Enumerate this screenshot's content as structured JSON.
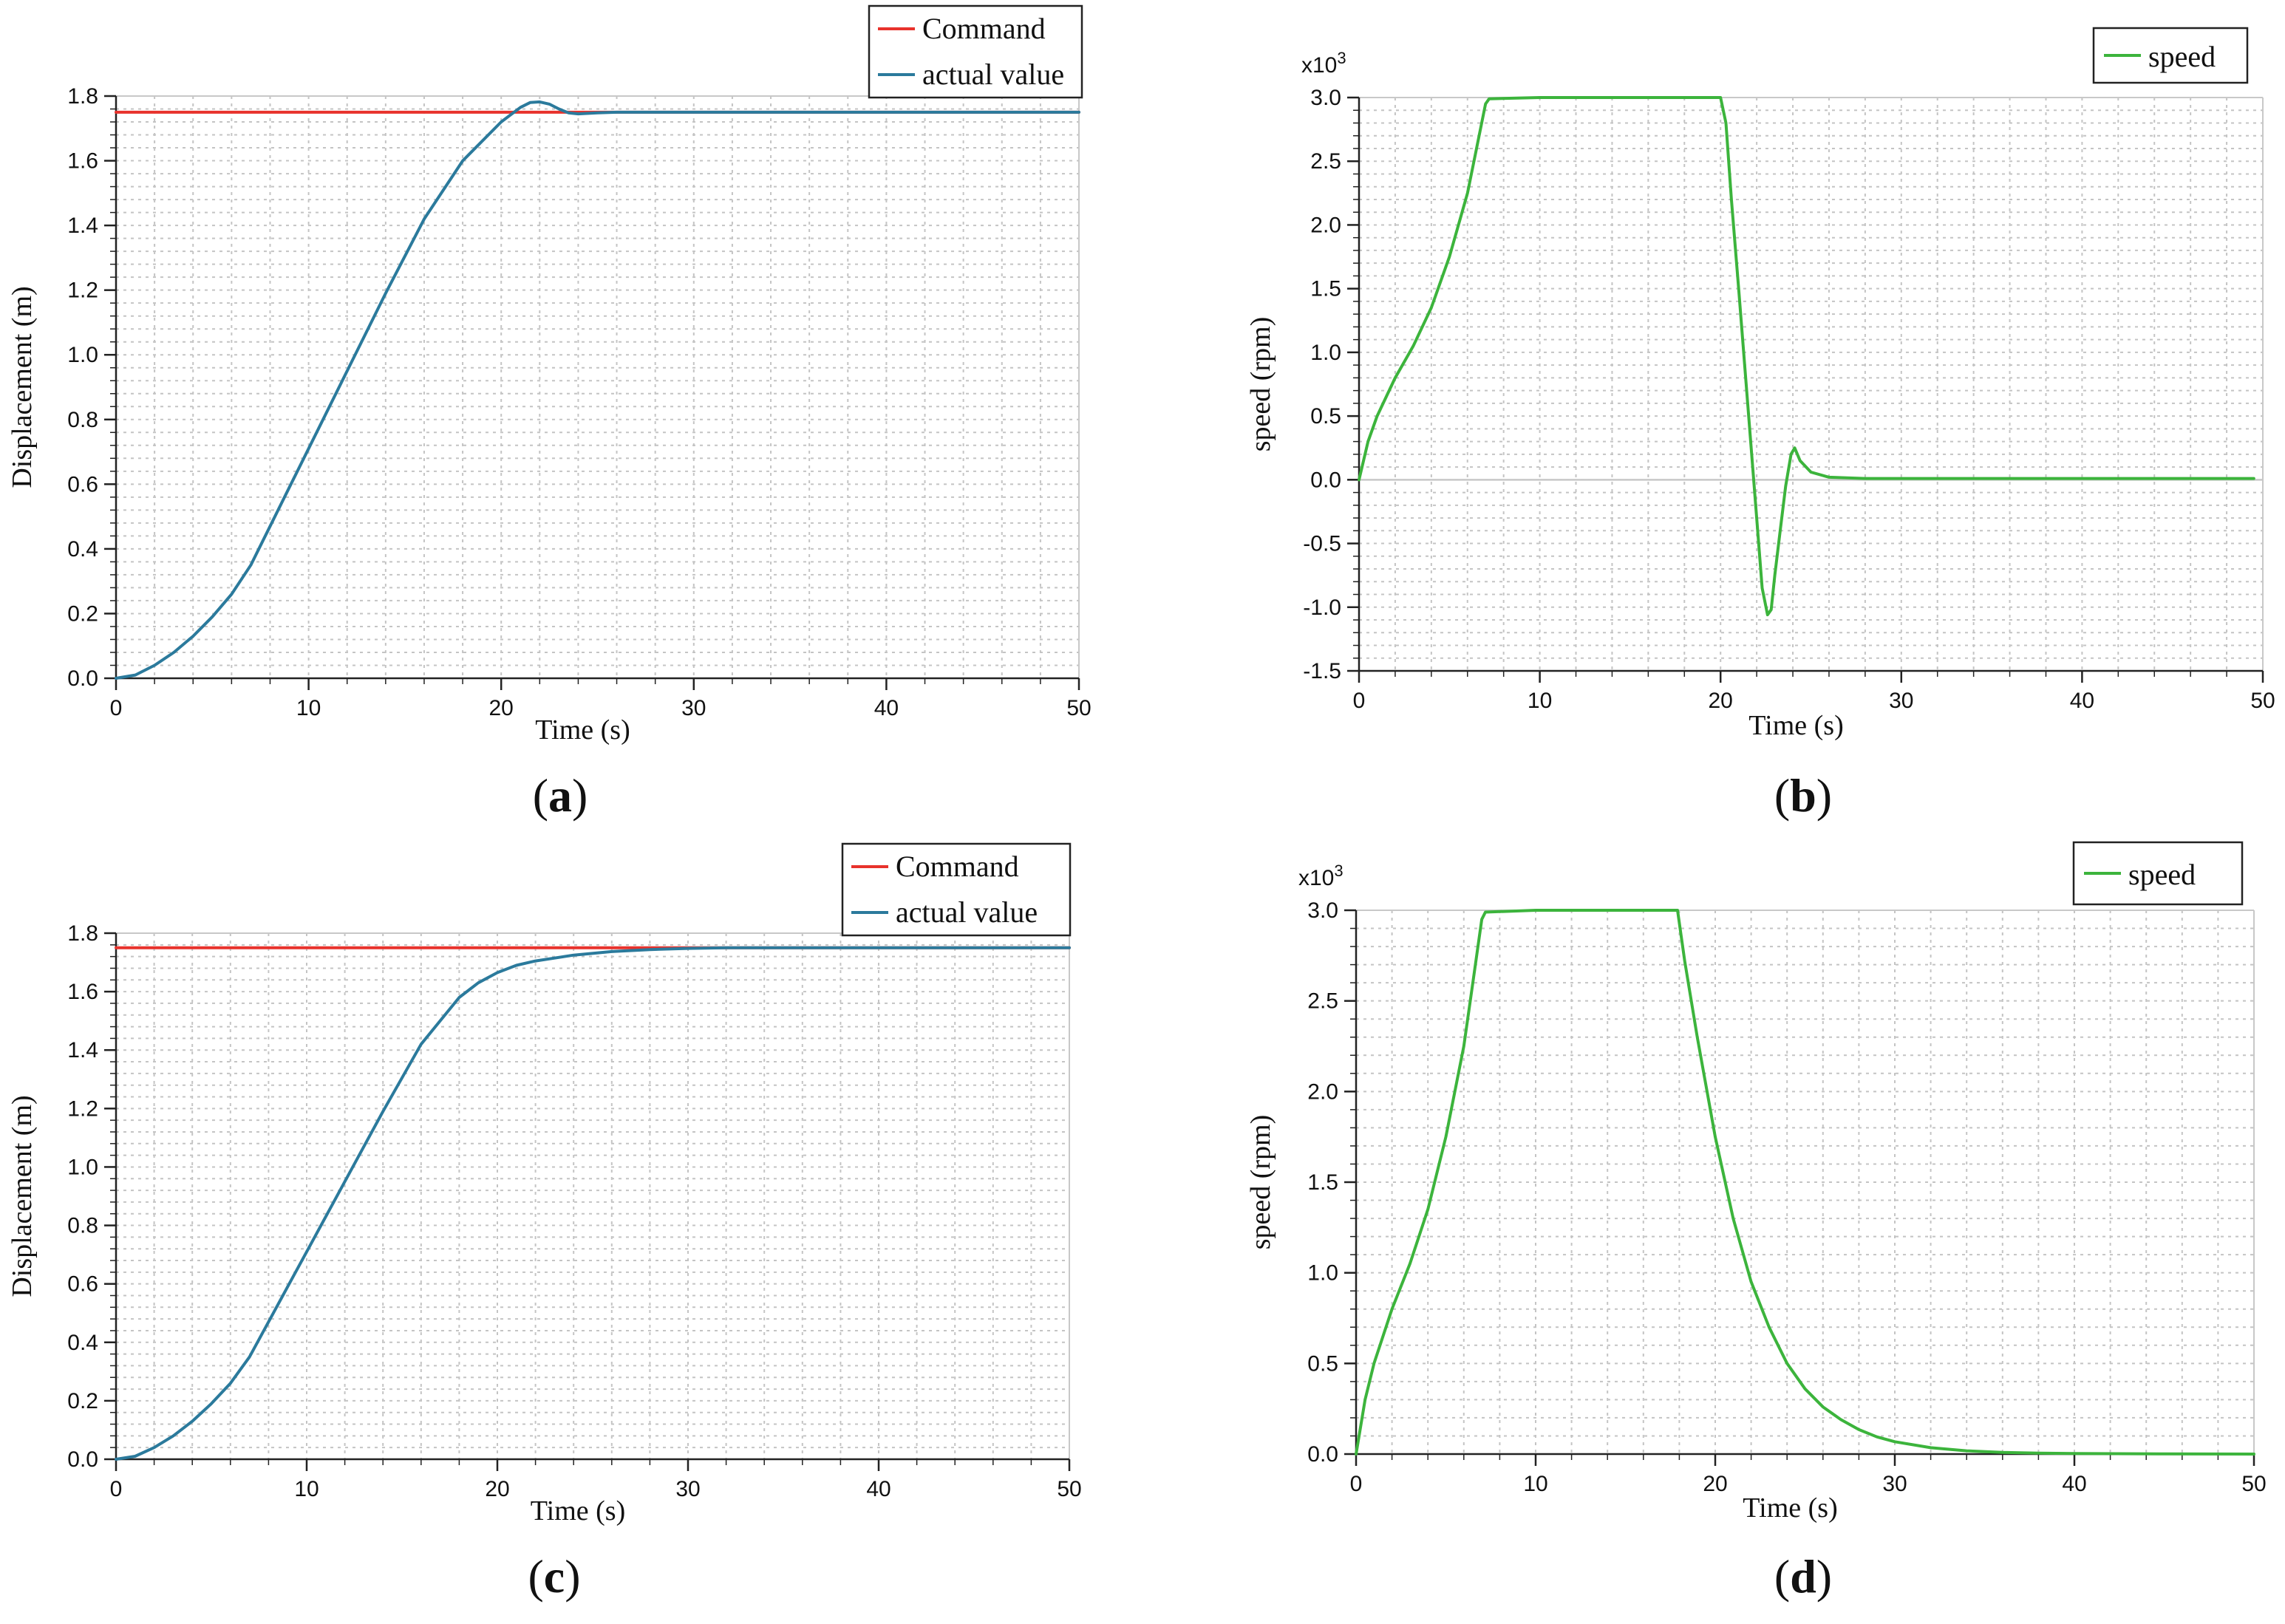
{
  "chart_data": [
    {
      "id": "a",
      "type": "line",
      "caption": "a",
      "xlabel": "Time (s)",
      "ylabel": "Displacement (m)",
      "xlim": [
        0,
        50
      ],
      "ylim": [
        0,
        1.8
      ],
      "xticks": [
        0,
        10,
        20,
        30,
        40,
        50
      ],
      "yticks": [
        0.0,
        0.2,
        0.4,
        0.6,
        0.8,
        1.0,
        1.2,
        1.4,
        1.6,
        1.8
      ],
      "ytick_labels": [
        "0.0",
        "0.2",
        "0.4",
        "0.6",
        "0.8",
        "1.0",
        "1.2",
        "1.4",
        "1.6",
        "1.8"
      ],
      "grid": true,
      "legend_position": "top-right",
      "series": [
        {
          "name": "Command",
          "color": "#e8322c",
          "x": [
            0,
            50
          ],
          "y": [
            1.75,
            1.75
          ]
        },
        {
          "name": "actual value",
          "color": "#2b7a9c",
          "x": [
            0,
            1,
            2,
            3,
            4,
            5,
            6,
            7,
            8,
            9,
            10,
            12,
            14,
            16,
            18,
            20,
            21,
            21.5,
            22,
            22.5,
            23,
            23.5,
            24,
            25,
            26,
            30,
            40,
            50
          ],
          "y": [
            0,
            0.01,
            0.04,
            0.08,
            0.13,
            0.19,
            0.26,
            0.35,
            0.47,
            0.59,
            0.71,
            0.95,
            1.19,
            1.42,
            1.6,
            1.72,
            1.765,
            1.78,
            1.782,
            1.775,
            1.76,
            1.748,
            1.745,
            1.748,
            1.75,
            1.75,
            1.75,
            1.75
          ]
        }
      ]
    },
    {
      "id": "b",
      "type": "line",
      "caption": "b",
      "xlabel": "Time (s)",
      "ylabel": "speed (rpm)",
      "scale_label": "x10",
      "scale_exponent": "3",
      "xlim": [
        0,
        50
      ],
      "ylim": [
        -1.5,
        3.0
      ],
      "xticks": [
        0,
        10,
        20,
        30,
        40,
        50
      ],
      "yticks": [
        -1.5,
        -1.0,
        -0.5,
        0.0,
        0.5,
        1.0,
        1.5,
        2.0,
        2.5,
        3.0
      ],
      "ytick_labels": [
        "-1.5",
        "-1.0",
        "-0.5",
        "0.0",
        "0.5",
        "1.0",
        "1.5",
        "2.0",
        "2.5",
        "3.0"
      ],
      "grid": true,
      "legend_position": "top-right",
      "series": [
        {
          "name": "speed",
          "color": "#3cb43c",
          "x": [
            0,
            0.5,
            1,
            2,
            3,
            4,
            5,
            6,
            6.5,
            7,
            7.2,
            10,
            15,
            19.5,
            20,
            20.3,
            20.6,
            21,
            21.5,
            22,
            22.3,
            22.6,
            22.8,
            23,
            23.3,
            23.6,
            23.9,
            24.1,
            24.4,
            25,
            26,
            28,
            30,
            40,
            49.5
          ],
          "y": [
            0,
            0.3,
            0.5,
            0.8,
            1.05,
            1.35,
            1.75,
            2.25,
            2.6,
            2.95,
            2.99,
            3.0,
            3.0,
            3.0,
            3.0,
            2.8,
            2.2,
            1.5,
            0.6,
            -0.3,
            -0.85,
            -1.06,
            -1.02,
            -0.75,
            -0.4,
            -0.05,
            0.2,
            0.25,
            0.15,
            0.06,
            0.02,
            0.01,
            0.01,
            0.01,
            0.01
          ]
        }
      ]
    },
    {
      "id": "c",
      "type": "line",
      "caption": "c",
      "xlabel": "Time (s)",
      "ylabel": "Displacement (m)",
      "xlim": [
        0,
        50
      ],
      "ylim": [
        0,
        1.8
      ],
      "xticks": [
        0,
        10,
        20,
        30,
        40,
        50
      ],
      "yticks": [
        0.0,
        0.2,
        0.4,
        0.6,
        0.8,
        1.0,
        1.2,
        1.4,
        1.6,
        1.8
      ],
      "ytick_labels": [
        "0.0",
        "0.2",
        "0.4",
        "0.6",
        "0.8",
        "1.0",
        "1.2",
        "1.4",
        "1.6",
        "1.8"
      ],
      "grid": true,
      "legend_position": "top-right",
      "series": [
        {
          "name": "Command",
          "color": "#e8322c",
          "x": [
            0,
            50
          ],
          "y": [
            1.75,
            1.75
          ]
        },
        {
          "name": "actual value",
          "color": "#2b7a9c",
          "x": [
            0,
            1,
            2,
            3,
            4,
            5,
            6,
            7,
            8,
            9,
            10,
            12,
            14,
            16,
            18,
            19,
            20,
            21,
            22,
            24,
            26,
            28,
            30,
            32,
            35,
            40,
            50
          ],
          "y": [
            0,
            0.01,
            0.04,
            0.08,
            0.13,
            0.19,
            0.26,
            0.35,
            0.47,
            0.59,
            0.71,
            0.95,
            1.19,
            1.42,
            1.58,
            1.63,
            1.665,
            1.69,
            1.705,
            1.725,
            1.737,
            1.744,
            1.748,
            1.75,
            1.75,
            1.75,
            1.75
          ]
        }
      ]
    },
    {
      "id": "d",
      "type": "line",
      "caption": "d",
      "xlabel": "Time (s)",
      "ylabel": "speed (rpm)",
      "scale_label": "x10",
      "scale_exponent": "3",
      "xlim": [
        0,
        50
      ],
      "ylim": [
        0,
        3.0
      ],
      "xticks": [
        0,
        10,
        20,
        30,
        40,
        50
      ],
      "yticks": [
        0.0,
        0.5,
        1.0,
        1.5,
        2.0,
        2.5,
        3.0
      ],
      "ytick_labels": [
        "0.0",
        "0.5",
        "1.0",
        "1.5",
        "2.0",
        "2.5",
        "3.0"
      ],
      "grid": true,
      "legend_position": "top-right",
      "series": [
        {
          "name": "speed",
          "color": "#3cb43c",
          "x": [
            0,
            0.5,
            1,
            2,
            3,
            4,
            5,
            6,
            6.5,
            7,
            7.2,
            10,
            15,
            17.9,
            18.3,
            19,
            20,
            21,
            22,
            23,
            24,
            25,
            26,
            27,
            28,
            29,
            30,
            32,
            34,
            36,
            38,
            40,
            45,
            50
          ],
          "y": [
            0,
            0.3,
            0.5,
            0.8,
            1.05,
            1.35,
            1.75,
            2.25,
            2.6,
            2.95,
            2.99,
            3.0,
            3.0,
            3.0,
            2.72,
            2.3,
            1.75,
            1.3,
            0.95,
            0.7,
            0.5,
            0.36,
            0.26,
            0.19,
            0.135,
            0.095,
            0.068,
            0.035,
            0.018,
            0.009,
            0.005,
            0.003,
            0.001,
            0
          ]
        }
      ]
    }
  ]
}
